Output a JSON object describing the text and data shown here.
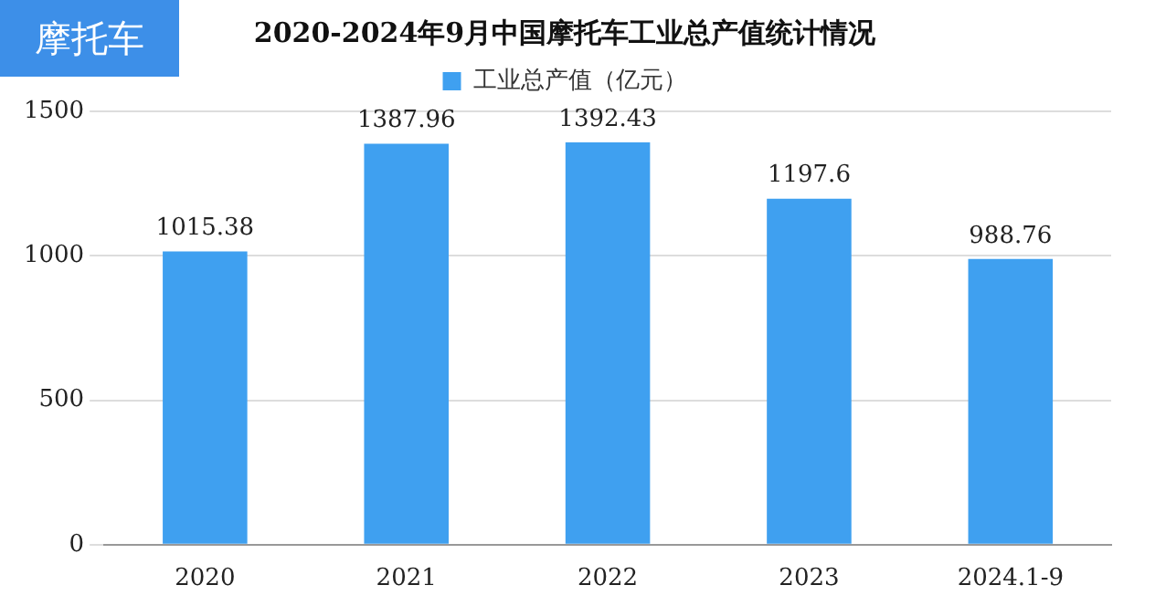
{
  "chart_data": {
    "type": "bar",
    "title": "2020-2024年9月中国摩托车工业总产值统计情况",
    "categories": [
      "2020",
      "2021",
      "2022",
      "2023",
      "2024.1-9"
    ],
    "series": [
      {
        "name": "工业总产值（亿元）",
        "color": "#3fa0f0",
        "values": [
          1015.38,
          1387.96,
          1392.43,
          1197.6,
          988.76
        ]
      }
    ],
    "value_labels": [
      "1015.38",
      "1387.96",
      "1392.43",
      "1197.6",
      "988.76"
    ],
    "ylim": [
      0,
      1500
    ],
    "yticks": [
      0,
      500,
      1000,
      1500
    ],
    "grid": "y",
    "legend": "top",
    "annotations": [
      "摩托车"
    ]
  }
}
